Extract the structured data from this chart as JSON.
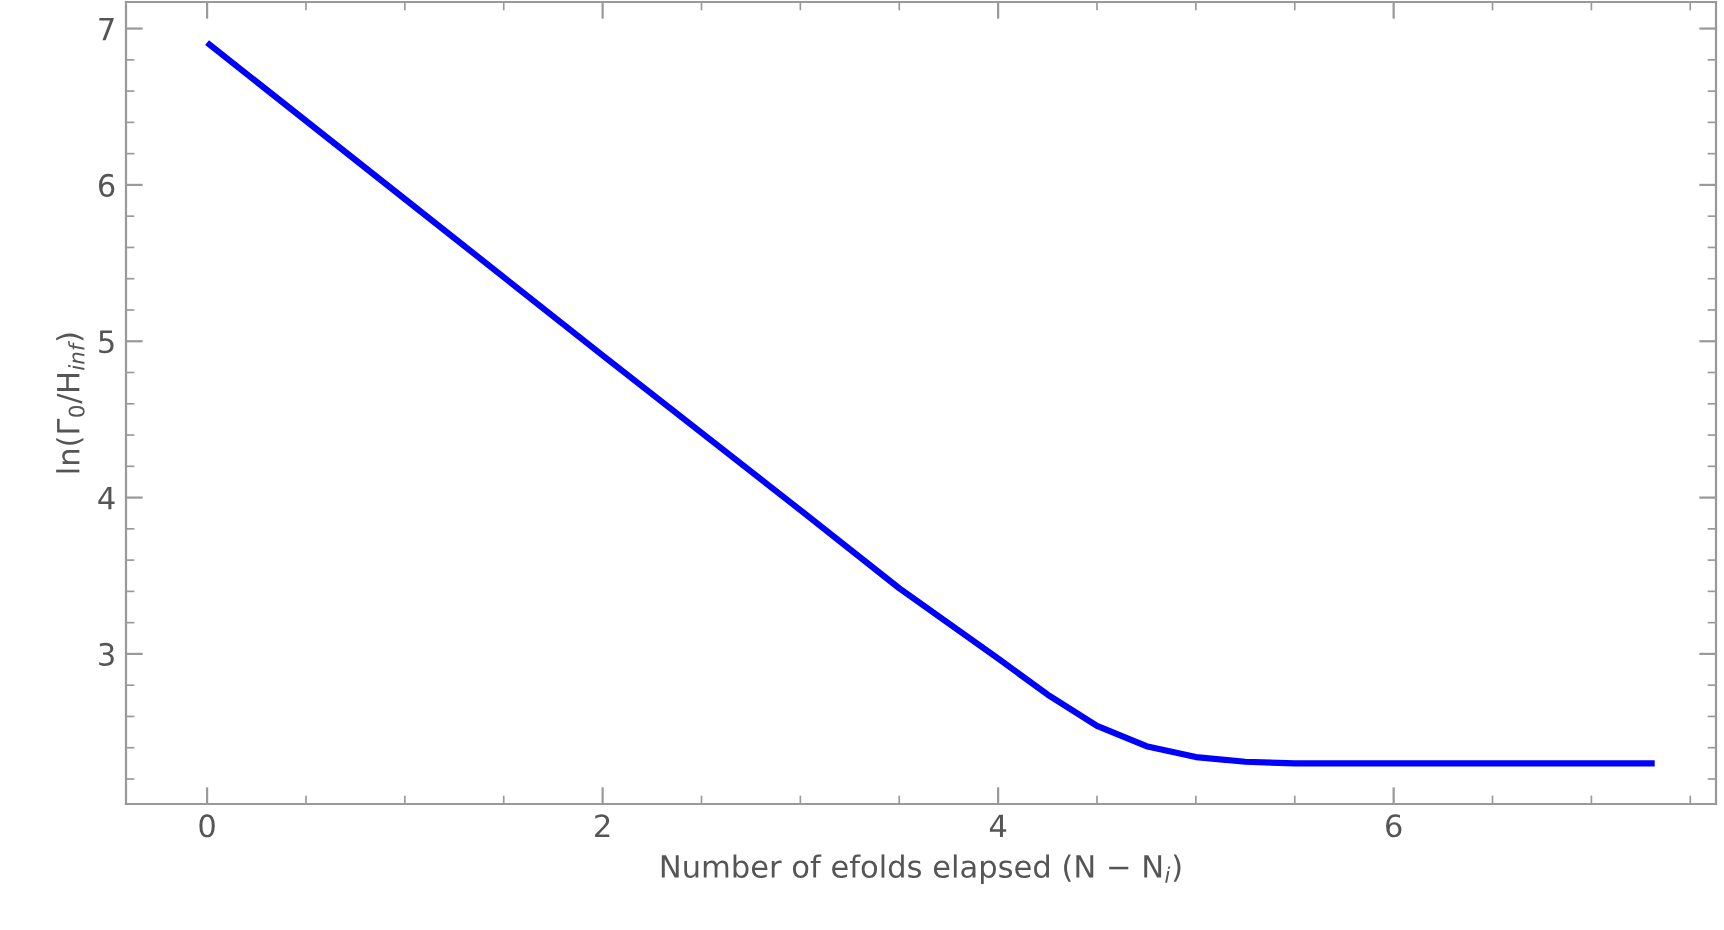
{
  "chart_data": {
    "type": "line",
    "xlabel": "Number of efolds elapsed (N − N$_{i}$)",
    "ylabel": "ln(Γ$_{0}$/H$_{inf}$)",
    "series": [
      {
        "color": "#0000ff",
        "x": [
          0,
          1,
          2,
          3,
          3.5,
          4,
          4.25,
          4.5,
          4.75,
          5,
          5.25,
          5.5,
          6,
          7.32
        ],
        "values": [
          6.91,
          5.91,
          4.91,
          3.92,
          3.42,
          2.97,
          2.74,
          2.54,
          2.41,
          2.34,
          2.31,
          2.3,
          2.3,
          2.3
        ]
      }
    ],
    "xlim": [
      -0.41,
      7.63
    ],
    "ylim": [
      2.04,
      7.17
    ],
    "xticks": [
      0,
      2,
      4,
      6
    ],
    "yticks": [
      3,
      4,
      5,
      6,
      7
    ],
    "grid": false,
    "legend": false,
    "marker": "none",
    "line_style": "solid"
  }
}
